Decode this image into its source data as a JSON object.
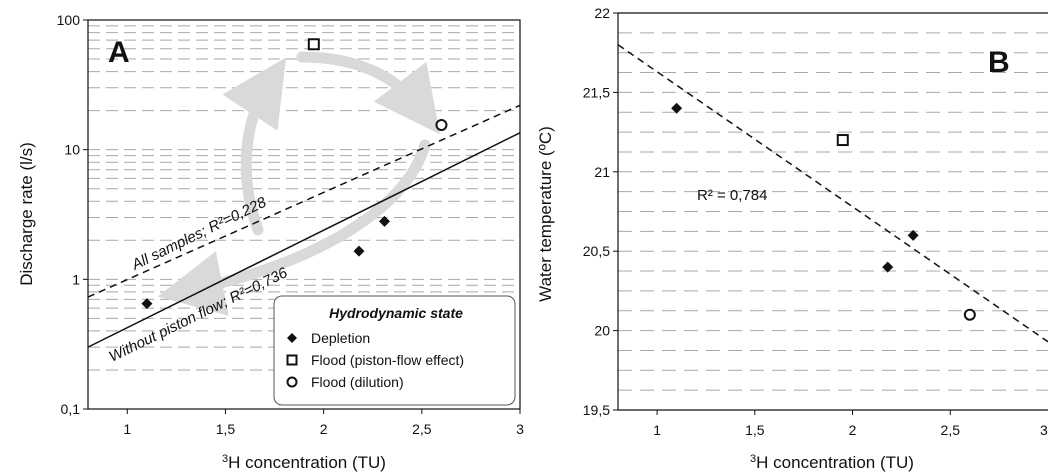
{
  "figure": {
    "panels": [
      {
        "panel_label": "A",
        "xlabel_prefix": "3",
        "xlabel_main": "H concentration (TU)",
        "ylabel": "Discharge rate (l/s)"
      },
      {
        "panel_label": "B",
        "xlabel_prefix": "3",
        "xlabel_main": "H concentration (TU)",
        "ylabel": "Water temperature (ºC)"
      }
    ],
    "legend": {
      "title": "Hydrodynamic state",
      "entries": [
        "Depletion",
        "Flood (piston-flow effect)",
        "Flood (dilution)"
      ]
    }
  },
  "chart_data": [
    {
      "type": "scatter",
      "panel": "A",
      "xlabel": "³H concentration (TU)",
      "ylabel": "Discharge rate (l/s)",
      "x_range": [
        0.8,
        3
      ],
      "y_range": [
        0.1,
        100
      ],
      "y_scale": "log",
      "x_ticks": [
        "1",
        "1,5",
        "2",
        "2,5",
        "3"
      ],
      "y_ticks": [
        "0,1",
        "1",
        "10",
        "100"
      ],
      "grid": "horizontal dashed",
      "legend_position": "bottom-right",
      "series": [
        {
          "name": "Depletion",
          "marker": "diamond",
          "points": [
            [
              1.1,
              0.65
            ],
            [
              2.18,
              1.65
            ],
            [
              2.31,
              2.8
            ]
          ]
        },
        {
          "name": "Flood (piston-flow effect)",
          "marker": "square-open",
          "points": [
            [
              1.95,
              65
            ]
          ]
        },
        {
          "name": "Flood (dilution)",
          "marker": "circle-open",
          "points": [
            [
              2.6,
              15.5
            ]
          ]
        }
      ],
      "trendlines": [
        {
          "label": "All samples; R²=0,228",
          "style": "dashed",
          "from": [
            0.8,
            0.73
          ],
          "to": [
            3,
            22
          ]
        },
        {
          "label": "Without piston flow; R²=0,736",
          "style": "solid",
          "from": [
            0.8,
            0.3
          ],
          "to": [
            3,
            13.5
          ]
        }
      ]
    },
    {
      "type": "scatter",
      "panel": "B",
      "xlabel": "³H concentration (TU)",
      "ylabel": "Water temperature (ºC)",
      "x_range": [
        0.8,
        3
      ],
      "y_range": [
        19.5,
        22
      ],
      "x_ticks": [
        "1",
        "1,5",
        "2",
        "2,5",
        "3"
      ],
      "y_ticks": [
        "19,5",
        "20",
        "20,5",
        "21",
        "21,5",
        "22"
      ],
      "grid": "horizontal dashed",
      "series": [
        {
          "name": "Depletion",
          "marker": "diamond",
          "points": [
            [
              1.1,
              21.4
            ],
            [
              2.18,
              20.4
            ],
            [
              2.31,
              20.6
            ]
          ]
        },
        {
          "name": "Flood (piston-flow effect)",
          "marker": "square-open",
          "points": [
            [
              1.95,
              21.2
            ]
          ]
        },
        {
          "name": "Flood (dilution)",
          "marker": "circle-open",
          "points": [
            [
              2.6,
              20.1
            ]
          ]
        }
      ],
      "trendlines": [
        {
          "label": "R² = 0,784",
          "style": "dashed",
          "from": [
            0.8,
            21.8
          ],
          "to": [
            3,
            19.93
          ]
        }
      ]
    }
  ]
}
